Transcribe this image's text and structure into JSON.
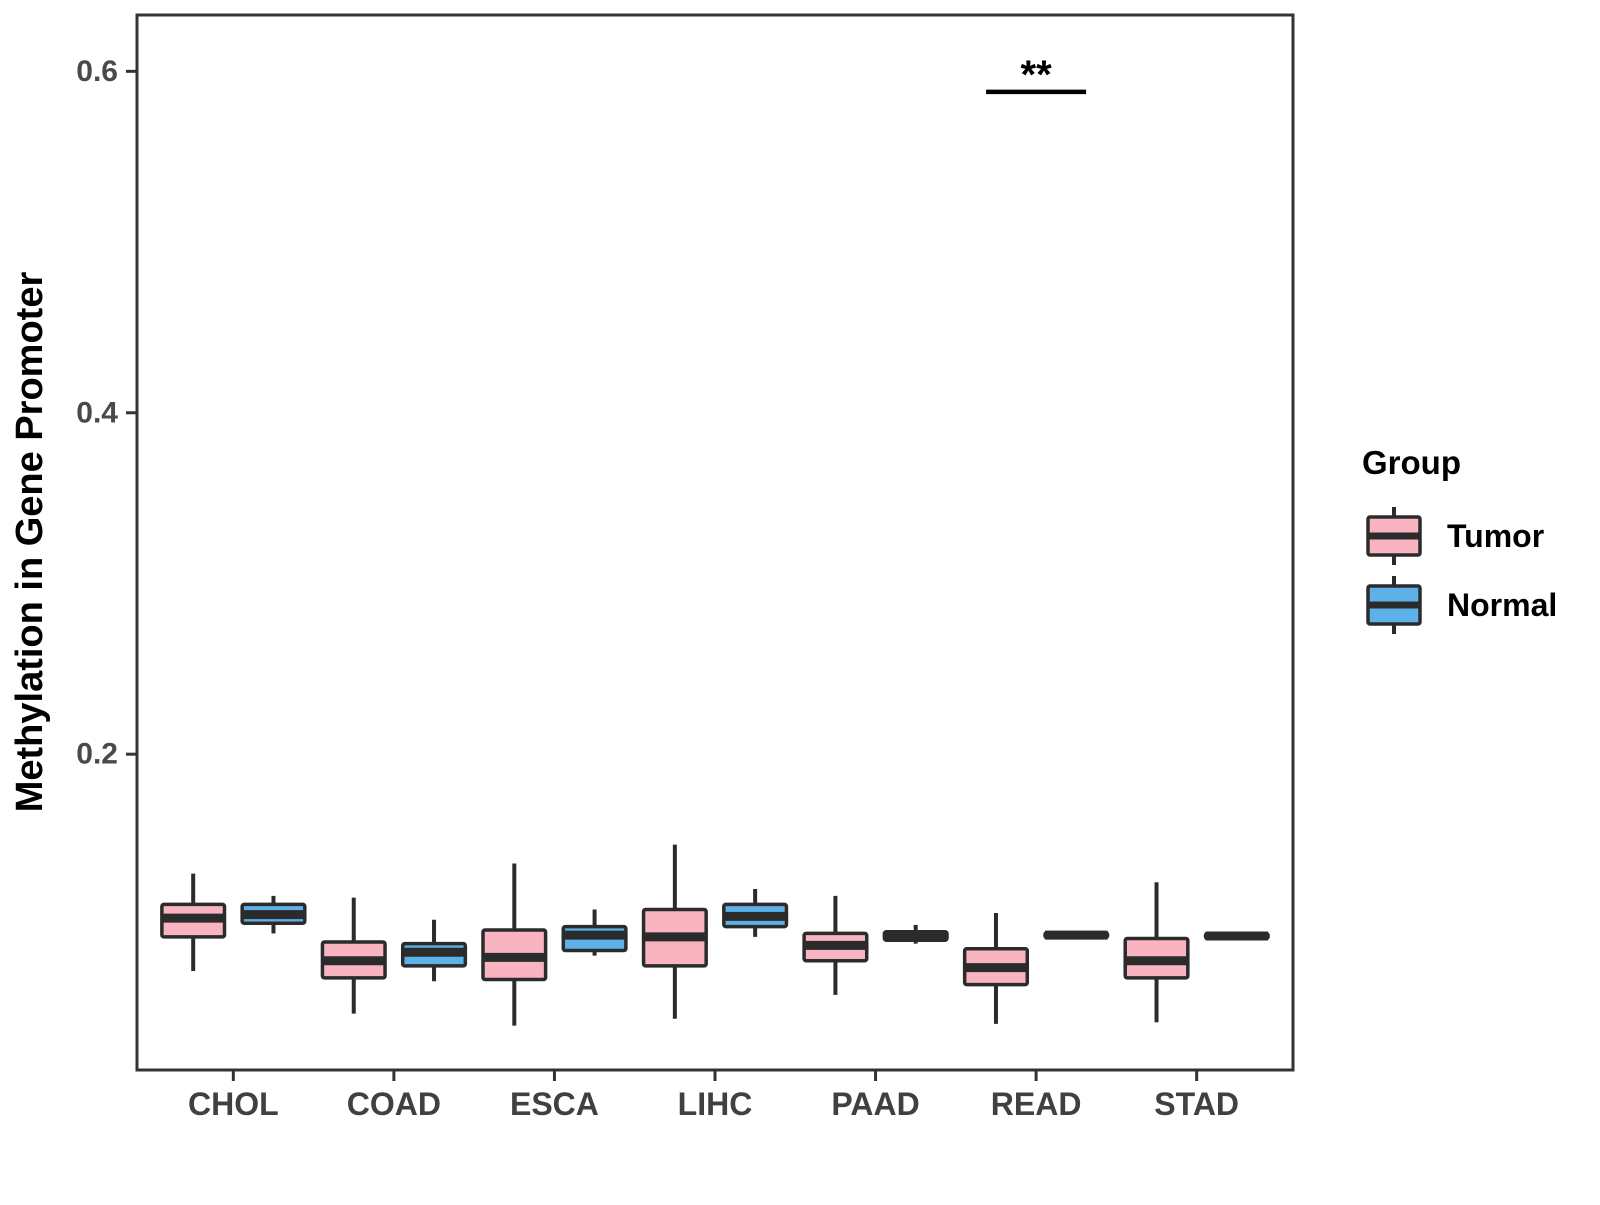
{
  "chart_data": {
    "type": "boxplot",
    "title": "",
    "xlabel": "",
    "ylabel": "Methylation in Gene Promoter",
    "categories": [
      "CHOL",
      "COAD",
      "ESCA",
      "LIHC",
      "PAAD",
      "READ",
      "STAD"
    ],
    "ylim": [
      0.015,
      0.633
    ],
    "yticks": [
      0.2,
      0.4,
      0.6
    ],
    "ytick_labels": [
      "0.2",
      "0.4",
      "0.6"
    ],
    "grid": "off",
    "legend_position": "right",
    "legend": {
      "title": "Group",
      "entries": [
        {
          "label": "Tumor",
          "color": "#F9B4C2"
        },
        {
          "label": "Normal",
          "color": "#5EB1E8"
        }
      ]
    },
    "series": [
      {
        "name": "Tumor",
        "color": "#F9B4C2",
        "boxes_min_q1_med_q3_max": [
          [
            0.073,
            0.093,
            0.104,
            0.112,
            0.13
          ],
          [
            0.048,
            0.069,
            0.079,
            0.09,
            0.116
          ],
          [
            0.041,
            0.068,
            0.081,
            0.097,
            0.136
          ],
          [
            0.045,
            0.076,
            0.093,
            0.109,
            0.147
          ],
          [
            0.059,
            0.079,
            0.088,
            0.095,
            0.117
          ],
          [
            0.042,
            0.065,
            0.075,
            0.086,
            0.107
          ],
          [
            0.043,
            0.069,
            0.079,
            0.092,
            0.125
          ]
        ]
      },
      {
        "name": "Normal",
        "color": "#5EB1E8",
        "boxes_min_q1_med_q3_max": [
          [
            0.095,
            0.101,
            0.106,
            0.112,
            0.117
          ],
          [
            0.067,
            0.076,
            0.084,
            0.089,
            0.103
          ],
          [
            0.082,
            0.085,
            0.094,
            0.099,
            0.109
          ],
          [
            0.093,
            0.099,
            0.105,
            0.112,
            0.121
          ],
          [
            0.089,
            0.091,
            0.094,
            0.096,
            0.1
          ],
          [
            0.093,
            0.093,
            0.094,
            0.095,
            0.095
          ],
          [
            0.092,
            0.093,
            0.0935,
            0.094,
            0.095
          ]
        ]
      }
    ],
    "annotation": {
      "label": "**",
      "category": "READ",
      "y": 0.588
    },
    "colors": {
      "box_stroke": "#2B2B2B",
      "axis": "#333333",
      "tick_label": "#4A4A4A",
      "background": "#FFFFFF"
    }
  }
}
